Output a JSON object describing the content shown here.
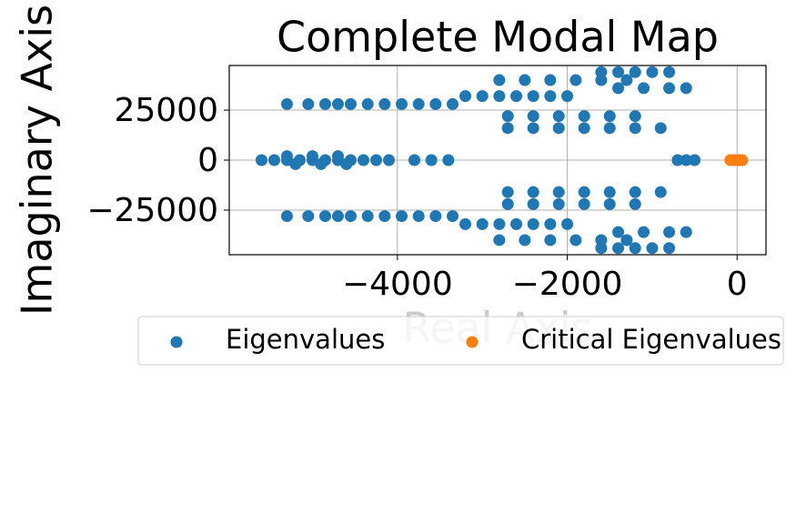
{
  "chart_data": {
    "type": "scatter",
    "title": "Complete Modal Map",
    "x_label": "Real Axis",
    "y_label": "Imaginary Axis",
    "xlim": [
      -5980,
      340
    ],
    "ylim": [
      -47300,
      47300
    ],
    "xticks": [
      {
        "value": -4000,
        "label": "−4000"
      },
      {
        "value": -2000,
        "label": "−2000"
      },
      0
    ],
    "yticks": [
      25000,
      0,
      {
        "value": -25000,
        "label": "−25000"
      }
    ],
    "grid": true,
    "legend": "below",
    "series": [
      {
        "name": "Eigenvalues",
        "color": "#1f77b4",
        "x": [
          -5300,
          -5050,
          -4850,
          -4700,
          -4550,
          -4350,
          -4150,
          -3950,
          -3750,
          -3550,
          -3350,
          -5300,
          -5050,
          -4850,
          -4700,
          -4550,
          -4350,
          -4150,
          -3950,
          -3750,
          -3550,
          -3350,
          -5600,
          -5450,
          -5300,
          -5150,
          -5000,
          -4850,
          -4700,
          -4550,
          -4400,
          -4250,
          -4100,
          -5300,
          -5000,
          -4700,
          -5200,
          -4900,
          -4600,
          -3800,
          -3600,
          -3400,
          -700,
          -600,
          -500,
          -3200,
          -3000,
          -2800,
          -2600,
          -2400,
          -2200,
          -2000,
          -2800,
          -2500,
          -2200,
          -1900,
          -1600,
          -1300,
          -1600,
          -1400,
          -1200,
          -1000,
          -800,
          -1400,
          -1100,
          -800,
          -600,
          -2700,
          -2400,
          -2100,
          -1800,
          -1500,
          -1200,
          -2700,
          -2400,
          -2100,
          -1800,
          -1500,
          -1200,
          -900,
          -3200,
          -3000,
          -2800,
          -2600,
          -2400,
          -2200,
          -2000,
          -2800,
          -2500,
          -2200,
          -1900,
          -1600,
          -1300,
          -1600,
          -1400,
          -1200,
          -1000,
          -800,
          -1400,
          -1100,
          -800,
          -600,
          -2700,
          -2400,
          -2100,
          -1800,
          -1500,
          -1200,
          -2700,
          -2400,
          -2100,
          -1800,
          -1500,
          -1200,
          -900
        ],
        "y": [
          28000,
          28000,
          28000,
          28000,
          28000,
          28000,
          28000,
          28000,
          28000,
          28000,
          28000,
          -28000,
          -28000,
          -28000,
          -28000,
          -28000,
          -28000,
          -28000,
          -28000,
          -28000,
          -28000,
          -28000,
          0,
          0,
          0,
          0,
          0,
          0,
          0,
          0,
          0,
          0,
          0,
          2000,
          2000,
          2000,
          -2000,
          -2000,
          -2000,
          0,
          0,
          0,
          0,
          0,
          0,
          32000,
          32000,
          32000,
          32000,
          32000,
          32000,
          32000,
          40000,
          40000,
          40000,
          40000,
          40000,
          40000,
          44000,
          44000,
          44000,
          44000,
          44000,
          36000,
          36000,
          36000,
          36000,
          22000,
          22000,
          22000,
          22000,
          22000,
          22000,
          16000,
          16000,
          16000,
          16000,
          16000,
          16000,
          16000,
          -32000,
          -32000,
          -32000,
          -32000,
          -32000,
          -32000,
          -32000,
          -40000,
          -40000,
          -40000,
          -40000,
          -40000,
          -40000,
          -44000,
          -44000,
          -44000,
          -44000,
          -44000,
          -36000,
          -36000,
          -36000,
          -36000,
          -22000,
          -22000,
          -22000,
          -22000,
          -22000,
          -22000,
          -16000,
          -16000,
          -16000,
          -16000,
          -16000,
          -16000,
          -16000
        ]
      },
      {
        "name": "Critical Eigenvalues",
        "color": "#ff7f0e",
        "x": [
          -80,
          -50,
          -20,
          10,
          40,
          60
        ],
        "y": [
          0,
          0,
          0,
          0,
          0,
          0
        ]
      }
    ]
  }
}
